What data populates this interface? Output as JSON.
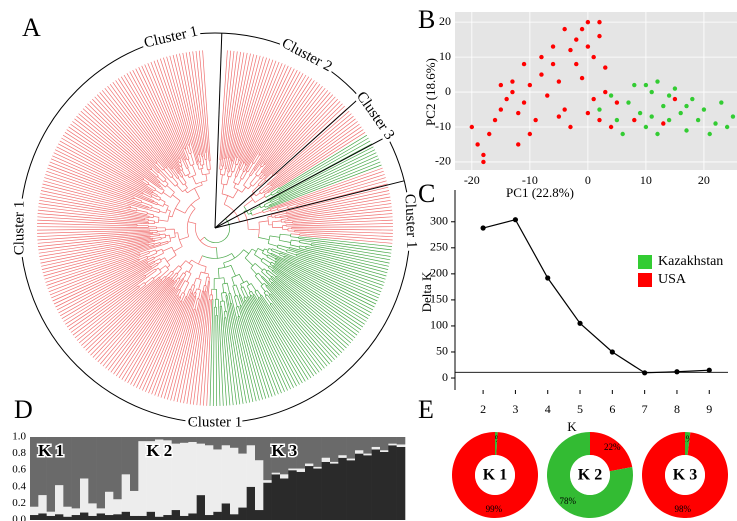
{
  "panel_labels": [
    "A",
    "B",
    "C",
    "D",
    "E"
  ],
  "dendrogram": {
    "cluster_labels": [
      "Cluster 1",
      "Cluster 2",
      "Cluster 3",
      "Cluster 1",
      "Cluster 1",
      "Cluster 1"
    ]
  },
  "chart_data": [
    {
      "type": "scatter",
      "x_label": "PC1 (22.8%)",
      "y_label": "PC2 (18.6%)",
      "xlim": [
        -22.9,
        25.7
      ],
      "ylim": [
        -22.3,
        22.9
      ],
      "xticks": [
        -20,
        -10,
        0,
        10,
        20
      ],
      "yticks": [
        -20,
        -10,
        0,
        10,
        20
      ],
      "background": "#e5e5e5",
      "grid": true,
      "series": [
        {
          "name": "Kazakhstan",
          "color": "#33cc33",
          "x": [
            2,
            4,
            5,
            7,
            8,
            9,
            10,
            11,
            12,
            13,
            14,
            15,
            16,
            17,
            18,
            19,
            20,
            21,
            22,
            23,
            24,
            25,
            6,
            10,
            12,
            14,
            17,
            11
          ],
          "values": [
            -5,
            -1,
            -8,
            -3,
            2,
            -6,
            -10,
            0,
            3,
            -4,
            -8,
            1,
            -6,
            -11,
            -2,
            -8,
            -5,
            -12,
            -9,
            -3,
            -10,
            -7,
            -12,
            2,
            -12,
            -1,
            -4,
            -7
          ]
        },
        {
          "name": "USA",
          "color": "#ff0000",
          "x": [
            -19,
            -18,
            -17,
            -20,
            -16,
            -15,
            -14,
            -13,
            -12,
            -11,
            -13,
            -10,
            -9,
            -8,
            -7,
            -6,
            -5,
            -4,
            -3,
            -2,
            -1,
            0,
            -2,
            -1,
            0,
            1,
            2,
            3,
            1,
            2,
            3,
            -4,
            -6,
            -8,
            -10,
            -12,
            -18,
            4,
            5,
            -3,
            -5,
            -15,
            -11,
            0,
            2,
            13,
            15,
            8
          ],
          "values": [
            -15,
            -18,
            -12,
            -10,
            -8,
            -5,
            -2,
            0,
            -6,
            -3,
            3,
            2,
            -8,
            5,
            -1,
            8,
            3,
            -5,
            12,
            15,
            18,
            20,
            8,
            4,
            13,
            10,
            16,
            7,
            -2,
            -8,
            0,
            18,
            13,
            10,
            -12,
            -15,
            -20,
            -10,
            -3,
            -10,
            -7,
            2,
            8,
            -6,
            20,
            -9,
            -2,
            -8
          ]
        }
      ]
    },
    {
      "type": "line",
      "x_label": "K",
      "y_label": "Delta K",
      "x": [
        2,
        3,
        4,
        5,
        6,
        7,
        8,
        9
      ],
      "values": [
        288,
        304,
        192,
        105,
        50,
        10,
        12,
        15
      ],
      "xlim": [
        1.13,
        9.58
      ],
      "ylim": [
        -23,
        361
      ],
      "xticks": [
        2,
        3,
        4,
        5,
        6,
        7,
        8,
        9
      ],
      "yticks": [
        0,
        50,
        100,
        150,
        200,
        250,
        300
      ],
      "hline": 11,
      "color": "#000000"
    },
    {
      "type": "bar",
      "stacked": true,
      "ylim": [
        0,
        1
      ],
      "yticks": [
        {
          "value": 0,
          "label": "0.0"
        },
        0.2,
        0.4,
        0.6,
        0.8,
        {
          "value": 1,
          "label": "1.0"
        }
      ],
      "series_colors": [
        "#2a2a2a",
        "#ededed",
        "#6a6a6a"
      ],
      "groups": [
        {
          "label": "K 1",
          "series": [
            {
              "values": [
                0.06,
                0.08,
                0.05,
                0.07,
                0.04,
                0.06,
                0.09,
                0.05,
                0.08,
                0.06,
                0.07,
                0.1,
                0.05
              ]
            },
            {
              "values": [
                0.1,
                0.22,
                0.05,
                0.35,
                0.12,
                0.08,
                0.41,
                0.15,
                0.06,
                0.28,
                0.18,
                0.45,
                0.3
              ]
            },
            {
              "values": [
                0.84,
                0.7,
                0.9,
                0.58,
                0.84,
                0.86,
                0.5,
                0.8,
                0.86,
                0.66,
                0.75,
                0.45,
                0.65
              ]
            }
          ]
        },
        {
          "label": "K 2",
          "series": [
            {
              "values": [
                0.05,
                0.1,
                0.04,
                0.06,
                0.12,
                0.05,
                0.08,
                0.3,
                0.06,
                0.1,
                0.2,
                0.07,
                0.15,
                0.4,
                0.12
              ]
            },
            {
              "values": [
                0.9,
                0.85,
                0.93,
                0.9,
                0.8,
                0.88,
                0.86,
                0.62,
                0.84,
                0.75,
                0.7,
                0.8,
                0.65,
                0.5,
                0.6
              ]
            },
            {
              "values": [
                0.05,
                0.05,
                0.03,
                0.04,
                0.08,
                0.07,
                0.06,
                0.08,
                0.1,
                0.15,
                0.1,
                0.13,
                0.2,
                0.1,
                0.28
              ]
            }
          ]
        },
        {
          "label": "K 3",
          "series": [
            {
              "values": [
                0.45,
                0.55,
                0.5,
                0.6,
                0.58,
                0.65,
                0.62,
                0.7,
                0.68,
                0.75,
                0.72,
                0.8,
                0.78,
                0.85,
                0.82,
                0.9,
                0.88
              ]
            },
            {
              "values": [
                0.03,
                0.02,
                0.05,
                0.02,
                0.04,
                0.03,
                0.02,
                0.05,
                0.02,
                0.03,
                0.02,
                0.04,
                0.02,
                0.03,
                0.02,
                0.02,
                0.03
              ]
            },
            {
              "values": [
                0.52,
                0.43,
                0.45,
                0.38,
                0.38,
                0.32,
                0.36,
                0.25,
                0.3,
                0.22,
                0.26,
                0.16,
                0.2,
                0.12,
                0.16,
                0.08,
                0.09
              ]
            }
          ]
        }
      ]
    },
    {
      "type": "pie",
      "label": "K 1",
      "values": [
        1,
        99
      ],
      "value_labels": [
        "1%",
        "99%"
      ],
      "colors": [
        "#33bb33",
        "#ff0000"
      ]
    },
    {
      "type": "pie",
      "label": "K 2",
      "values": [
        22,
        78
      ],
      "value_labels": [
        "22%",
        "78%"
      ],
      "colors": [
        "#ff0000",
        "#33bb33"
      ]
    },
    {
      "type": "pie",
      "label": "K 3",
      "values": [
        2,
        98
      ],
      "value_labels": [
        "2%",
        "98%"
      ],
      "colors": [
        "#33bb33",
        "#ff0000"
      ]
    }
  ]
}
